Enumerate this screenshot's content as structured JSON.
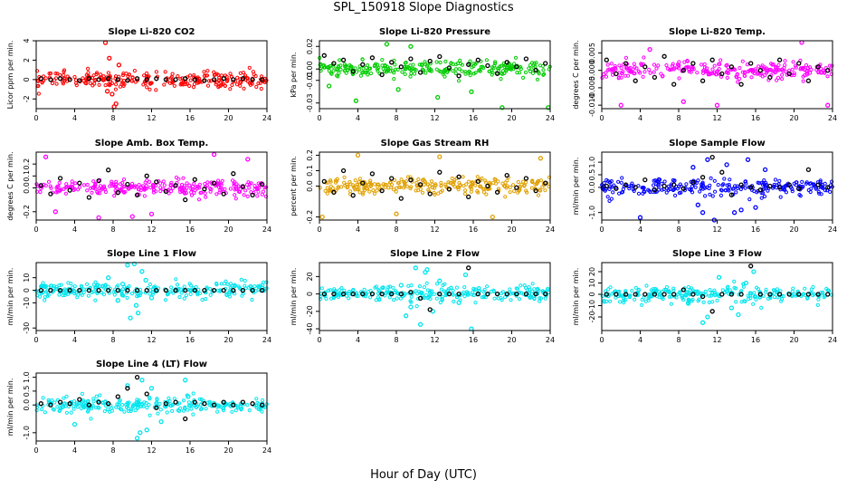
{
  "title": "SPL_150918  Slope Diagnostics",
  "xlabel": "Hour of Day (UTC)",
  "chart_data": [
    {
      "type": "scatter",
      "title": "Slope Li-820 CO2",
      "ylabel": "Licor ppm per min.",
      "color": "#ff0000",
      "xlim": [
        0,
        24
      ],
      "xticks": [
        "0",
        "4",
        "8",
        "12",
        "16",
        "20",
        "24"
      ],
      "ylim": [
        -3,
        4
      ],
      "yticks": [
        "-2",
        "0",
        "2",
        "4"
      ],
      "black_points": {
        "x": [
          0.5,
          1.5,
          2.5,
          3.5,
          4.5,
          5.5,
          6.5,
          7.5,
          8.5,
          9.5,
          10.5,
          11.5,
          12.5,
          13.5,
          14.5,
          15.5,
          16.5,
          17.5,
          18.5,
          19.5,
          20.5,
          21.5,
          22.5,
          23.5
        ],
        "y": [
          0.1,
          0.0,
          0.1,
          0.0,
          -0.1,
          0.1,
          0.0,
          0.1,
          0.0,
          -0.1,
          0.1,
          0.0,
          0.1,
          0.0,
          0.0,
          0.1,
          0.0,
          -0.1,
          0.0,
          0.1,
          0.0,
          0.1,
          0.0,
          0.0
        ]
      },
      "outliers": {
        "x": [
          7.2,
          7.6,
          7.9,
          8.3,
          8.6,
          7.4,
          8.1
        ],
        "y": [
          3.8,
          2.2,
          -1.5,
          -2.5,
          1.5,
          -1.2,
          -2.8
        ]
      }
    },
    {
      "type": "scatter",
      "title": "Slope Li-820 Pressure",
      "ylabel": "kPa per min.",
      "color": "#00cc00",
      "xlim": [
        0,
        24
      ],
      "xticks": [
        "0",
        "4",
        "8",
        "12",
        "16",
        "20",
        "24"
      ],
      "ylim": [
        -0.035,
        0.025
      ],
      "yticks": [
        "-0.03",
        "-0.01",
        "0.00",
        "0.02"
      ],
      "black_points": {
        "x": [
          0.5,
          1.5,
          2.5,
          3.5,
          4.5,
          5.5,
          6.5,
          7.5,
          8.5,
          9.5,
          10.5,
          11.5,
          12.5,
          13.5,
          14.5,
          15.5,
          16.5,
          17.5,
          18.5,
          19.5,
          20.5,
          21.5,
          22.5,
          23.5
        ],
        "y": [
          0.012,
          0.005,
          0.008,
          -0.002,
          0.004,
          0.01,
          -0.005,
          0.006,
          0.002,
          0.009,
          -0.003,
          0.007,
          0.011,
          0.001,
          -0.006,
          0.004,
          0.008,
          0.003,
          -0.004,
          0.006,
          0.002,
          0.009,
          -0.001,
          0.005
        ]
      },
      "outliers": {
        "x": [
          3.8,
          7.0,
          8.2,
          12.3,
          15.8,
          19.0,
          23.8,
          1.0,
          9.5
        ],
        "y": [
          -0.028,
          0.022,
          -0.018,
          -0.025,
          -0.02,
          -0.034,
          -0.034,
          -0.015,
          0.02
        ]
      }
    },
    {
      "type": "scatter",
      "title": "Slope Li-820 Temp.",
      "ylabel": "degrees C per min.",
      "color": "#ff00ff",
      "xlim": [
        0,
        24
      ],
      "xticks": [
        "0",
        "4",
        "8",
        "12",
        "16",
        "20",
        "24"
      ],
      "ylim": [
        -0.011,
        0.0085
      ],
      "yticks": [
        "-0.010",
        "-0.005",
        "0.000",
        "0.005"
      ],
      "black_points": {
        "x": [
          0.5,
          1.5,
          2.5,
          3.5,
          4.5,
          5.5,
          6.5,
          7.5,
          8.5,
          9.5,
          10.5,
          11.5,
          12.5,
          13.5,
          14.5,
          15.5,
          16.5,
          17.5,
          18.5,
          19.5,
          20.5,
          21.5,
          22.5,
          23.5
        ],
        "y": [
          0.003,
          -0.001,
          0.002,
          -0.003,
          0.001,
          -0.002,
          0.004,
          -0.004,
          0.0,
          0.002,
          -0.003,
          0.003,
          -0.001,
          0.001,
          -0.004,
          0.002,
          0.0,
          -0.002,
          0.003,
          -0.001,
          0.002,
          -0.003,
          0.001,
          0.0
        ]
      },
      "outliers": {
        "x": [
          2.0,
          8.5,
          12.0,
          20.8,
          23.5,
          5.0
        ],
        "y": [
          -0.01,
          -0.009,
          -0.01,
          0.008,
          -0.01,
          0.006
        ]
      }
    },
    {
      "type": "scatter",
      "title": "Slope Amb. Box Temp.",
      "ylabel": "degrees C per min.",
      "color": "#ff00ff",
      "xlim": [
        0,
        24
      ],
      "xticks": [
        "0",
        "4",
        "8",
        "12",
        "16",
        "20",
        "24"
      ],
      "ylim": [
        -0.27,
        0.3
      ],
      "yticks": [
        "-0.2",
        "0.0",
        "0.1",
        "0.2"
      ],
      "black_points": {
        "x": [
          0.5,
          1.5,
          2.5,
          3.5,
          4.5,
          5.5,
          6.5,
          7.5,
          8.5,
          9.5,
          10.5,
          11.5,
          12.5,
          13.5,
          14.5,
          15.5,
          16.5,
          17.5,
          18.5,
          19.5,
          20.5,
          21.5,
          22.5,
          23.5
        ],
        "y": [
          0.02,
          -0.05,
          0.08,
          -0.02,
          0.04,
          -0.08,
          0.06,
          0.15,
          -0.04,
          0.03,
          -0.06,
          0.1,
          0.05,
          -0.03,
          0.02,
          -0.1,
          0.07,
          -0.01,
          0.04,
          -0.05,
          0.12,
          0.01,
          -0.06,
          0.03
        ]
      },
      "outliers": {
        "x": [
          1.0,
          6.5,
          12.0,
          18.5,
          2.0,
          22.0,
          10.0
        ],
        "y": [
          0.26,
          -0.25,
          -0.22,
          0.28,
          -0.2,
          0.24,
          -0.24
        ]
      }
    },
    {
      "type": "scatter",
      "title": "Slope Gas Stream RH",
      "ylabel": "percent per min.",
      "color": "#e0a000",
      "xlim": [
        0,
        24
      ],
      "xticks": [
        "0",
        "4",
        "8",
        "12",
        "16",
        "20",
        "24"
      ],
      "ylim": [
        -0.22,
        0.22
      ],
      "yticks": [
        "-0.2",
        "0.0",
        "0.1",
        "0.2"
      ],
      "black_points": {
        "x": [
          0.5,
          1.5,
          2.5,
          3.5,
          4.5,
          5.5,
          6.5,
          7.5,
          8.5,
          9.5,
          10.5,
          11.5,
          12.5,
          13.5,
          14.5,
          15.5,
          16.5,
          17.5,
          18.5,
          19.5,
          20.5,
          21.5,
          22.5,
          23.5
        ],
        "y": [
          0.03,
          -0.04,
          0.1,
          -0.06,
          0.02,
          0.08,
          -0.03,
          0.05,
          -0.08,
          0.04,
          0.01,
          -0.05,
          0.09,
          -0.02,
          0.06,
          -0.07,
          0.03,
          0.0,
          -0.04,
          0.07,
          -0.01,
          0.05,
          -0.03,
          0.02
        ]
      },
      "outliers": {
        "x": [
          0.3,
          4.0,
          8.0,
          12.5,
          18.0,
          23.0
        ],
        "y": [
          -0.2,
          0.2,
          -0.18,
          0.19,
          -0.2,
          0.18
        ]
      }
    },
    {
      "type": "scatter",
      "title": "Slope Sample Flow",
      "ylabel": "ml/min per min.",
      "color": "#0000ff",
      "xlim": [
        0,
        24
      ],
      "xticks": [
        "0",
        "4",
        "8",
        "12",
        "16",
        "20",
        "24"
      ],
      "ylim": [
        -1.3,
        1.4
      ],
      "yticks": [
        "-1.0",
        "0.0",
        "0.5",
        "1.0"
      ],
      "black_points": {
        "x": [
          0.5,
          1.5,
          2.5,
          3.5,
          4.5,
          5.5,
          6.5,
          7.5,
          8.5,
          9.5,
          10.5,
          11.5,
          12.5,
          13.5,
          14.5,
          15.5,
          16.5,
          17.5,
          18.5,
          19.5,
          20.5,
          21.5,
          22.5,
          23.5
        ],
        "y": [
          0.05,
          -0.05,
          0.1,
          0.0,
          0.3,
          -0.1,
          0.05,
          0.1,
          -0.05,
          0.2,
          0.4,
          1.2,
          0.6,
          -0.3,
          0.1,
          0.0,
          -0.1,
          0.05,
          0.0,
          0.1,
          -0.05,
          0.7,
          0.1,
          0.0
        ]
      },
      "outliers": {
        "x": [
          4.0,
          9.5,
          10.5,
          11.0,
          11.7,
          13.0,
          14.5,
          15.2,
          16.0,
          17.0,
          10.0,
          13.8
        ],
        "y": [
          -1.2,
          0.8,
          -1.0,
          1.1,
          -1.3,
          0.9,
          -0.9,
          1.1,
          -0.8,
          0.7,
          -0.7,
          -1.0
        ]
      }
    },
    {
      "type": "scatter",
      "title": "Slope Line 1 Flow",
      "ylabel": "ml/min per min.",
      "color": "#00e5ee",
      "xlim": [
        0,
        24
      ],
      "xticks": [
        "0",
        "4",
        "8",
        "12",
        "16",
        "20",
        "24"
      ],
      "ylim": [
        -32,
        22
      ],
      "yticks": [
        "-30",
        "-10",
        "0",
        "10"
      ],
      "black_points": {
        "x": [
          0.5,
          1.5,
          2.5,
          3.5,
          4.5,
          5.5,
          6.5,
          7.5,
          8.5,
          9.5,
          10.5,
          11.5,
          12.5,
          13.5,
          14.5,
          15.5,
          16.5,
          17.5,
          18.5,
          19.5,
          20.5,
          21.5,
          22.5,
          23.5
        ],
        "y": [
          0,
          0,
          0,
          0,
          0,
          0,
          0,
          0,
          0,
          0,
          0,
          0,
          0,
          0,
          0,
          0,
          0,
          0,
          0,
          0,
          0,
          0,
          0,
          0
        ]
      },
      "outliers": {
        "x": [
          7.5,
          8.5,
          9.5,
          10.2,
          10.6,
          11.0,
          9.8,
          10.4,
          11.4,
          12.0,
          9.0
        ],
        "y": [
          10,
          -8,
          20,
          21,
          -18,
          15,
          -22,
          -12,
          8,
          -6,
          5
        ]
      }
    },
    {
      "type": "scatter",
      "title": "Slope Line 2 Flow",
      "ylabel": "ml/min per min.",
      "color": "#00e5ee",
      "xlim": [
        0,
        24
      ],
      "xticks": [
        "0",
        "4",
        "8",
        "12",
        "16",
        "20",
        "24"
      ],
      "ylim": [
        -42,
        36
      ],
      "yticks": [
        "-40",
        "-20",
        "0",
        "20"
      ],
      "black_points": {
        "x": [
          0.5,
          1.5,
          2.5,
          3.5,
          4.5,
          5.5,
          6.5,
          7.5,
          8.5,
          9.5,
          10.5,
          11.5,
          12.5,
          13.5,
          14.5,
          15.5,
          16.5,
          17.5,
          18.5,
          19.5,
          20.5,
          21.5,
          22.5,
          23.5
        ],
        "y": [
          0,
          0,
          0,
          0,
          0,
          0,
          0,
          0,
          0,
          2,
          -5,
          -18,
          0,
          0,
          0,
          30,
          0,
          0,
          0,
          0,
          0,
          0,
          0,
          0
        ]
      },
      "outliers": {
        "x": [
          8.5,
          9.5,
          10.0,
          10.5,
          11.0,
          11.8,
          12.5,
          14.5,
          15.2,
          15.8,
          9.0,
          11.2
        ],
        "y": [
          10,
          -15,
          30,
          -35,
          25,
          -20,
          15,
          -10,
          22,
          -40,
          -25,
          28
        ]
      }
    },
    {
      "type": "scatter",
      "title": "Slope Line 3 Flow",
      "ylabel": "ml/min per min.",
      "color": "#00e5ee",
      "xlim": [
        0,
        24
      ],
      "xticks": [
        "0",
        "4",
        "8",
        "12",
        "16",
        "20",
        "24"
      ],
      "ylim": [
        -32,
        28
      ],
      "yticks": [
        "-20",
        "-10",
        "0",
        "10",
        "20"
      ],
      "black_points": {
        "x": [
          0.5,
          1.5,
          2.5,
          3.5,
          4.5,
          5.5,
          6.5,
          7.5,
          8.5,
          9.5,
          10.5,
          11.5,
          12.5,
          13.5,
          14.5,
          15.5,
          16.5,
          17.5,
          18.5,
          19.5,
          20.5,
          21.5,
          22.5,
          23.5
        ],
        "y": [
          0,
          0,
          0,
          0,
          0,
          0,
          0,
          0,
          4,
          0,
          -2,
          -15,
          0,
          0,
          0,
          25,
          0,
          0,
          0,
          0,
          0,
          0,
          0,
          0
        ]
      },
      "outliers": {
        "x": [
          10.5,
          11.0,
          12.2,
          13.5,
          15.0,
          15.8,
          9.0,
          14.2
        ],
        "y": [
          -25,
          -20,
          15,
          -12,
          10,
          20,
          -8,
          -18
        ]
      }
    },
    {
      "type": "scatter",
      "title": "Slope Line 4 (LT) Flow",
      "ylabel": "ml/min per min.",
      "color": "#00e5ee",
      "xlim": [
        0,
        24
      ],
      "xticks": [
        "0",
        "4",
        "8",
        "12",
        "16",
        "20",
        "24"
      ],
      "ylim": [
        -1.3,
        1.15
      ],
      "yticks": [
        "-1.0",
        "0.0",
        "0.5",
        "1.0"
      ],
      "black_points": {
        "x": [
          0.5,
          1.5,
          2.5,
          3.5,
          4.5,
          5.5,
          6.5,
          7.5,
          8.5,
          9.5,
          10.5,
          11.5,
          12.5,
          13.5,
          14.5,
          15.5,
          16.5,
          17.5,
          18.5,
          19.5,
          20.5,
          21.5,
          22.5,
          23.5
        ],
        "y": [
          0.05,
          0.0,
          0.1,
          0.05,
          0.2,
          0.0,
          0.1,
          0.05,
          0.3,
          0.6,
          1.0,
          0.4,
          -0.1,
          0.05,
          0.1,
          -0.5,
          0.1,
          0.05,
          0.0,
          0.1,
          0.0,
          0.1,
          0.05,
          0.0
        ]
      },
      "outliers": {
        "x": [
          4.0,
          9.5,
          10.5,
          11.0,
          11.5,
          12.0,
          13.0,
          15.5,
          15.8,
          10.8
        ],
        "y": [
          -0.7,
          0.7,
          -1.2,
          0.9,
          -0.9,
          0.6,
          -0.6,
          0.9,
          0.3,
          -1.0
        ]
      }
    }
  ]
}
